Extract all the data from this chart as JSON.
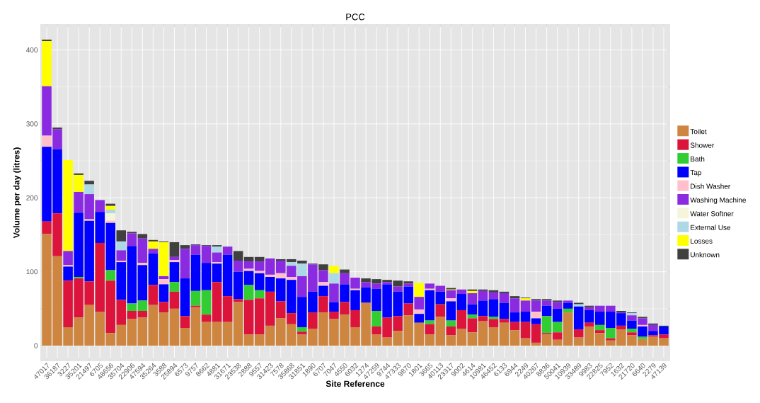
{
  "chart_data": {
    "type": "bar",
    "title": "PCC",
    "xlabel": "Site Reference",
    "ylabel": "Volume per day (litres)",
    "stacked": true,
    "grid": true,
    "legend": "right",
    "categories": [
      "47017",
      "36187",
      "3227",
      "35201",
      "21497",
      "6705",
      "48656",
      "35704",
      "22906",
      "47594",
      "35264",
      "3588",
      "25894",
      "6573",
      "9757",
      "8662",
      "4881",
      "31671",
      "23538",
      "2888",
      "9557",
      "31423",
      "7578",
      "35868",
      "31851",
      "1890",
      "6707",
      "7047",
      "4550",
      "6032",
      "1274",
      "47259",
      "9744",
      "47333",
      "9870",
      "1801",
      "3665",
      "40113",
      "23317",
      "9002",
      "4614",
      "10981",
      "46452",
      "6133",
      "6944",
      "2249",
      "40267",
      "8836",
      "50041",
      "10939",
      "33489",
      "9983",
      "22825",
      "7952",
      "1632",
      "21720",
      "6640",
      "2279",
      "47139"
    ],
    "ylim": [
      -21,
      435
    ],
    "yticks": [
      0,
      100,
      200,
      300,
      400
    ],
    "series": [
      {
        "name": "Toilet",
        "color": "#cd853f",
        "values": [
          151,
          121,
          25,
          38,
          55,
          46,
          17,
          28,
          36,
          38,
          55,
          45,
          50,
          24,
          52,
          32,
          32,
          32,
          59,
          15,
          15,
          27,
          37,
          29,
          15,
          23,
          45,
          36,
          42,
          25,
          58,
          15,
          11,
          20,
          41,
          31,
          15,
          39,
          14,
          23,
          18,
          33,
          25,
          31,
          21,
          10,
          4,
          15,
          8,
          45,
          11,
          26,
          17,
          7,
          22,
          14,
          9,
          12,
          10
        ]
      },
      {
        "name": "Shower",
        "color": "#dc143c",
        "values": [
          17,
          58,
          63,
          53,
          32,
          93,
          71,
          34,
          11,
          9,
          27,
          14,
          23,
          16,
          2,
          10,
          54,
          35,
          4,
          47,
          49,
          46,
          23,
          15,
          4,
          22,
          22,
          10,
          17,
          23,
          0,
          11,
          27,
          20,
          16,
          0,
          14,
          17,
          12,
          25,
          19,
          7,
          11,
          5,
          11,
          22,
          25,
          2,
          10,
          0,
          11,
          5,
          4,
          3,
          5,
          4,
          0,
          2,
          5
        ]
      },
      {
        "name": "Bath",
        "color": "#32cd32",
        "values": [
          0,
          0,
          0,
          2,
          0,
          0,
          14,
          0,
          10,
          14,
          0,
          0,
          13,
          0,
          20,
          33,
          0,
          0,
          0,
          20,
          11,
          0,
          0,
          0,
          6,
          0,
          0,
          0,
          0,
          0,
          0,
          21,
          0,
          0,
          0,
          0,
          5,
          0,
          8,
          0,
          5,
          0,
          3,
          0,
          0,
          0,
          0,
          23,
          14,
          5,
          0,
          0,
          7,
          14,
          0,
          5,
          3,
          0,
          0
        ]
      },
      {
        "name": "Tap",
        "color": "#0000ff",
        "values": [
          101,
          87,
          19,
          87,
          82,
          42,
          64,
          51,
          78,
          48,
          43,
          24,
          27,
          51,
          49,
          37,
          25,
          56,
          37,
          19,
          23,
          20,
          31,
          45,
          41,
          28,
          14,
          13,
          24,
          27,
          21,
          30,
          45,
          33,
          23,
          12,
          41,
          17,
          26,
          22,
          14,
          21,
          24,
          22,
          13,
          14,
          8,
          14,
          18,
          8,
          31,
          17,
          18,
          22,
          17,
          11,
          14,
          6,
          11
        ]
      },
      {
        "name": "Dish Washer",
        "color": "#ffc0cb",
        "values": [
          15,
          0,
          2,
          0,
          2,
          0,
          3,
          2,
          0,
          3,
          0,
          7,
          3,
          0,
          0,
          0,
          2,
          0,
          0,
          3,
          3,
          3,
          7,
          4,
          0,
          0,
          5,
          0,
          0,
          2,
          0,
          0,
          0,
          0,
          0,
          6,
          2,
          0,
          4,
          0,
          0,
          0,
          0,
          0,
          0,
          0,
          9,
          0,
          0,
          0,
          0,
          0,
          0,
          0,
          0,
          0,
          2,
          0,
          0
        ]
      },
      {
        "name": "Washing Machine",
        "color": "#8a2be2",
        "values": [
          67,
          27,
          19,
          28,
          34,
          16,
          0,
          14,
          17,
          33,
          6,
          4,
          4,
          40,
          13,
          23,
          13,
          11,
          15,
          10,
          13,
          22,
          17,
          15,
          28,
          37,
          16,
          25,
          15,
          15,
          7,
          7,
          3,
          7,
          4,
          17,
          7,
          8,
          11,
          6,
          15,
          13,
          9,
          13,
          19,
          15,
          15,
          7,
          9,
          3,
          0,
          4,
          8,
          8,
          1,
          7,
          9,
          8,
          0
        ]
      },
      {
        "name": "Water Softner",
        "color": "#f5f5dc",
        "values": [
          0,
          0,
          0,
          0,
          0,
          0,
          10,
          0,
          0,
          0,
          0,
          0,
          0,
          0,
          0,
          0,
          0,
          0,
          0,
          0,
          0,
          0,
          0,
          0,
          0,
          0,
          0,
          0,
          0,
          0,
          0,
          0,
          0,
          0,
          0,
          0,
          0,
          0,
          0,
          0,
          0,
          0,
          0,
          0,
          0,
          0,
          0,
          0,
          0,
          0,
          0,
          0,
          0,
          0,
          0,
          0,
          0,
          0,
          0
        ]
      },
      {
        "name": "External Use",
        "color": "#add8e6",
        "values": [
          0,
          0,
          0,
          0,
          13,
          0,
          5,
          12,
          0,
          0,
          0,
          0,
          0,
          0,
          0,
          0,
          8,
          0,
          0,
          0,
          0,
          0,
          0,
          5,
          17,
          0,
          0,
          14,
          0,
          0,
          0,
          0,
          0,
          0,
          0,
          0,
          0,
          0,
          0,
          0,
          0,
          0,
          0,
          0,
          0,
          0,
          0,
          0,
          0,
          0,
          3,
          0,
          0,
          0,
          0,
          3,
          0,
          0,
          0
        ]
      },
      {
        "name": "Losses",
        "color": "#ffff00",
        "values": [
          61,
          0,
          123,
          23,
          0,
          0,
          5,
          0,
          0,
          0,
          10,
          46,
          0,
          0,
          0,
          0,
          0,
          0,
          0,
          0,
          0,
          0,
          0,
          0,
          0,
          0,
          0,
          10,
          0,
          0,
          0,
          0,
          0,
          0,
          0,
          19,
          0,
          0,
          1,
          0,
          3,
          0,
          0,
          0,
          0,
          3,
          0,
          0,
          0,
          0,
          0,
          0,
          0,
          0,
          0,
          0,
          0,
          0,
          0
        ]
      },
      {
        "name": "Unknown",
        "color": "#404040",
        "values": [
          2,
          2,
          0,
          2,
          5,
          0,
          3,
          15,
          2,
          6,
          2,
          1,
          20,
          5,
          1,
          1,
          2,
          0,
          13,
          6,
          6,
          0,
          2,
          4,
          4,
          1,
          8,
          0,
          5,
          0,
          5,
          6,
          3,
          8,
          3,
          0,
          0,
          0,
          2,
          0,
          2,
          2,
          3,
          2,
          3,
          1,
          2,
          2,
          2,
          0,
          2,
          2,
          0,
          0,
          2,
          1,
          2,
          2,
          1
        ]
      }
    ]
  }
}
